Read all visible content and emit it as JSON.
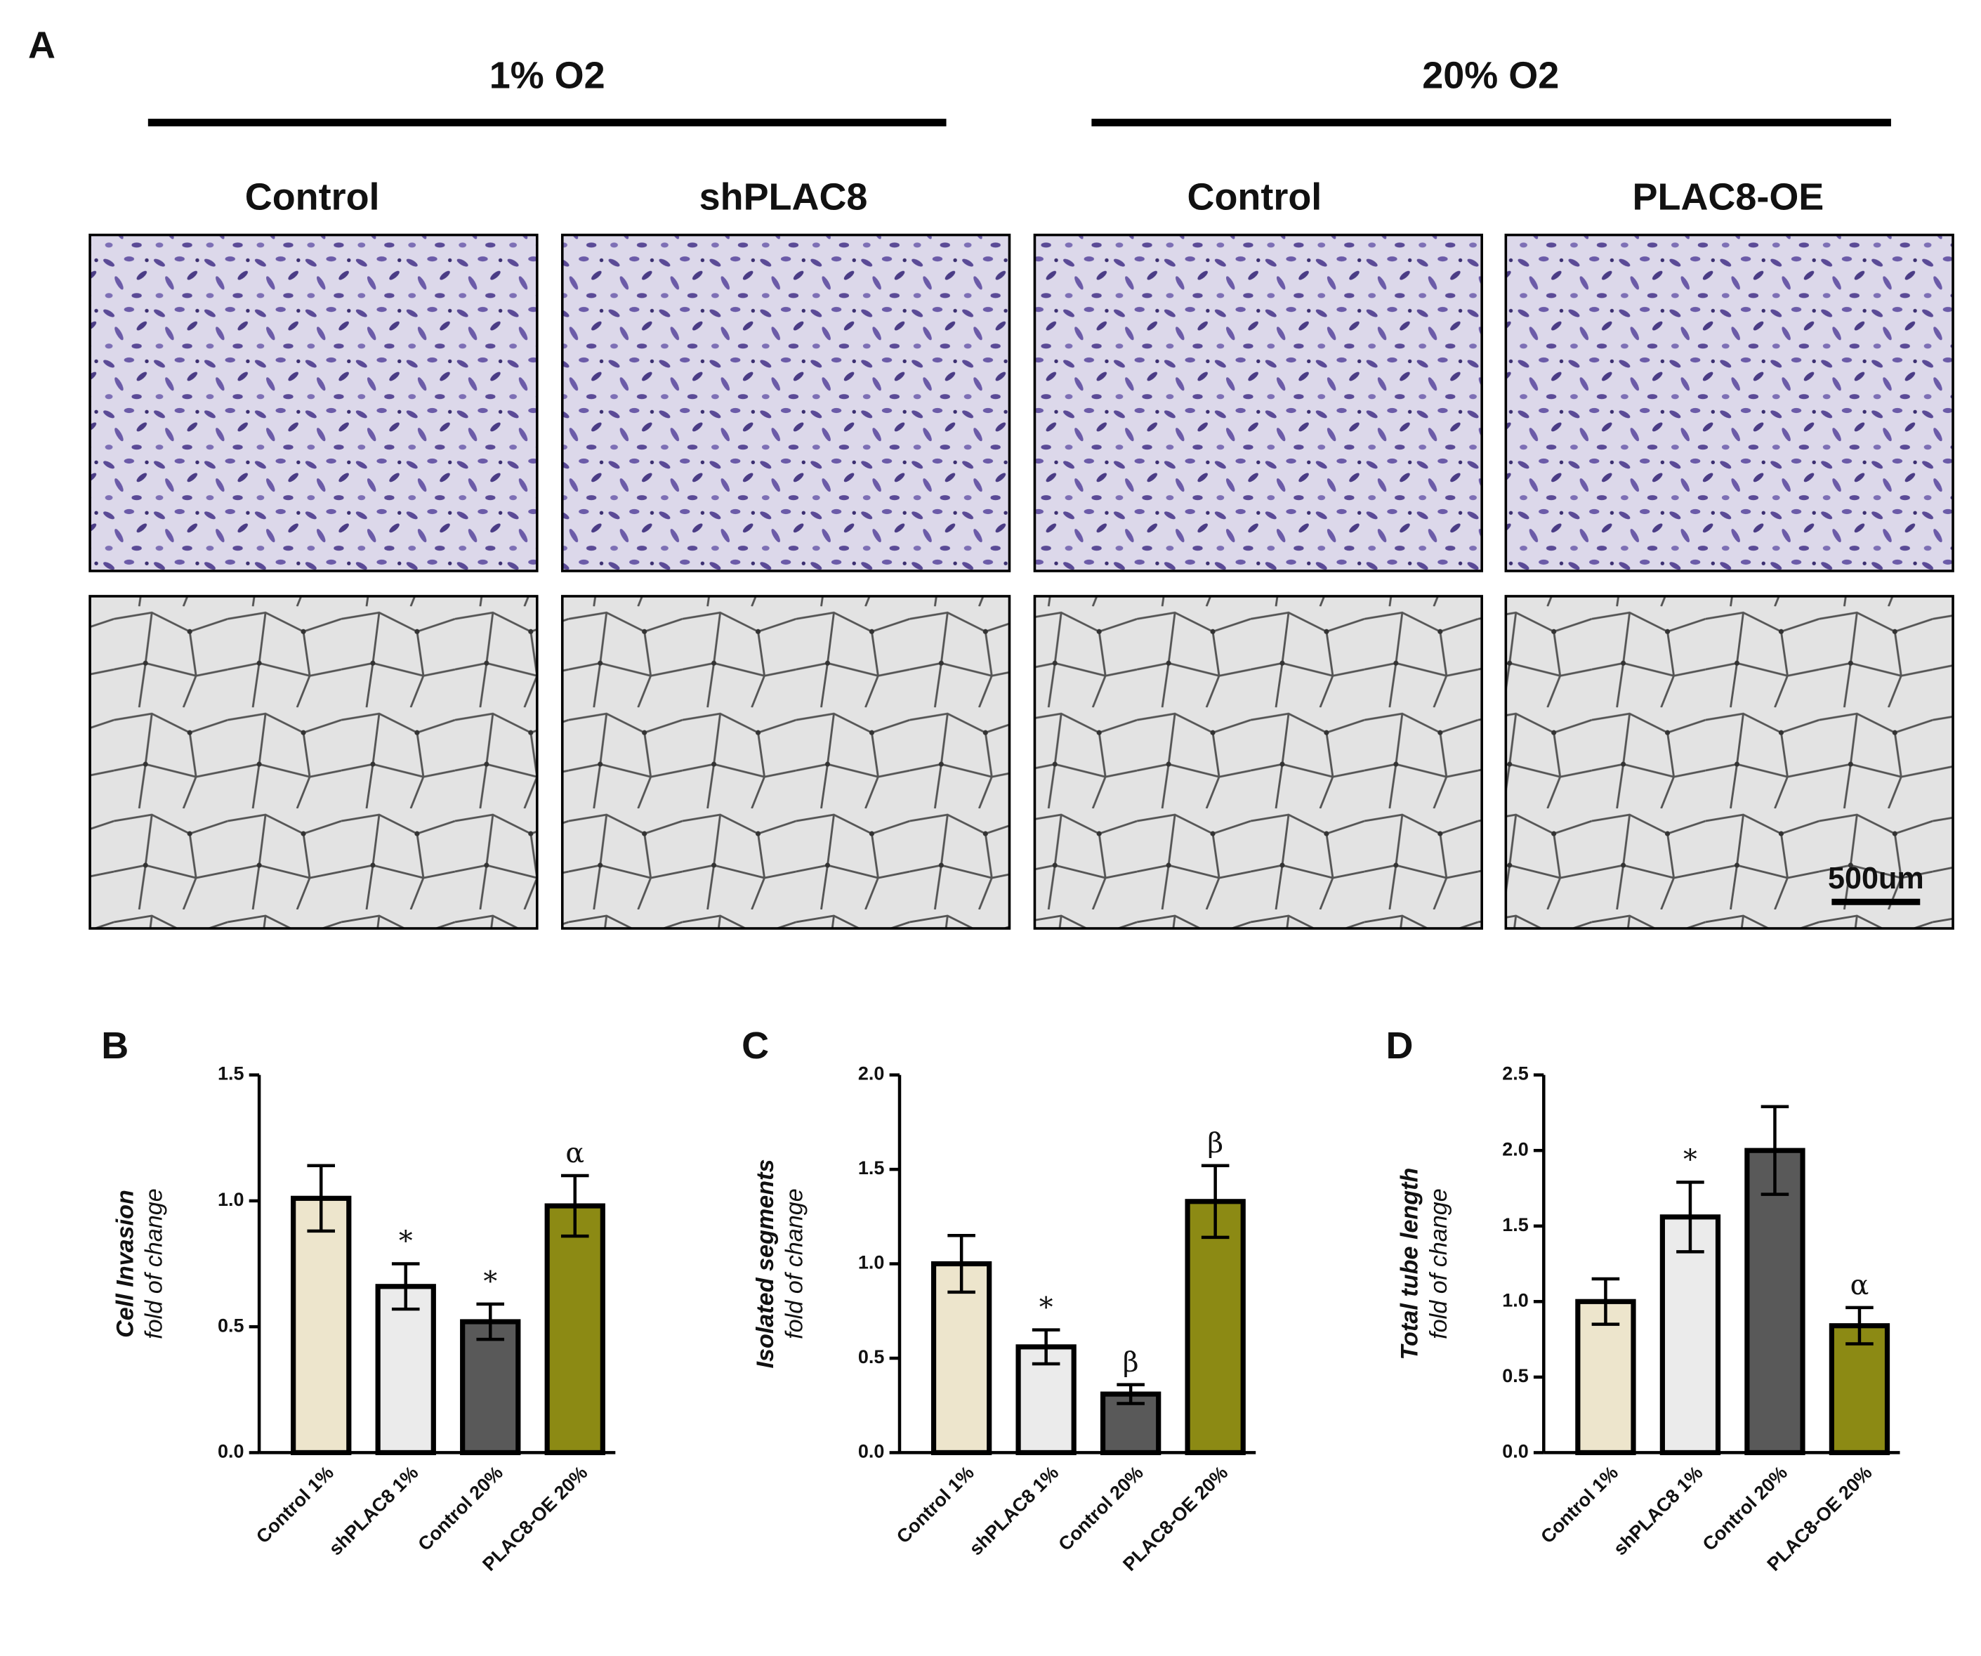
{
  "panel_a": {
    "label": "A",
    "groups": [
      {
        "title": "1% O2"
      },
      {
        "title": "20% O2"
      }
    ],
    "columns": [
      "Control",
      "shPLAC8",
      "Control",
      "PLAC8-OE"
    ],
    "scale_bar": "500um"
  },
  "chart_data": [
    {
      "type": "bar",
      "panel": "B",
      "ylabel": [
        "Cell Invasion",
        "fold of change"
      ],
      "categories": [
        "Control 1%",
        "shPLAC8 1%",
        "Control 20%",
        "PLAC8-OE 20%"
      ],
      "values": [
        1.01,
        0.66,
        0.52,
        0.98
      ],
      "errors": [
        0.13,
        0.09,
        0.07,
        0.12
      ],
      "colors": [
        "#ede5cc",
        "#ebebeb",
        "#595959",
        "#8c8a14"
      ],
      "annotations": [
        null,
        "*",
        "*",
        "α"
      ],
      "ylim": [
        0,
        1.5
      ],
      "yticks": [
        {
          "value": 0,
          "label": "0.0"
        },
        {
          "value": 0.5,
          "label": "0.5"
        },
        {
          "value": 1,
          "label": "1.0"
        },
        {
          "value": 1.5,
          "label": "1.5"
        }
      ]
    },
    {
      "type": "bar",
      "panel": "C",
      "ylabel": [
        "Isolated segments",
        "fold of change"
      ],
      "categories": [
        "Control 1%",
        "shPLAC8 1%",
        "Control 20%",
        "PLAC8-OE 20%"
      ],
      "values": [
        1.0,
        0.56,
        0.31,
        1.33
      ],
      "errors": [
        0.15,
        0.09,
        0.05,
        0.19
      ],
      "colors": [
        "#ede5cc",
        "#ebebeb",
        "#595959",
        "#8c8a14"
      ],
      "annotations": [
        null,
        "*",
        "β",
        "β"
      ],
      "ylim": [
        0,
        2
      ],
      "yticks": [
        {
          "value": 0,
          "label": "0.0"
        },
        {
          "value": 0.5,
          "label": "0.5"
        },
        {
          "value": 1,
          "label": "1.0"
        },
        {
          "value": 1.5,
          "label": "1.5"
        },
        {
          "value": 2,
          "label": "2.0"
        }
      ]
    },
    {
      "type": "bar",
      "panel": "D",
      "ylabel": [
        "Total tube length",
        "fold of change"
      ],
      "categories": [
        "Control 1%",
        "shPLAC8 1%",
        "Control 20%",
        "PLAC8-OE 20%"
      ],
      "values": [
        1.0,
        1.56,
        2.0,
        0.84
      ],
      "errors": [
        0.15,
        0.23,
        0.29,
        0.12
      ],
      "colors": [
        "#ede5cc",
        "#ebebeb",
        "#595959",
        "#8c8a14"
      ],
      "annotations": [
        null,
        "*",
        null,
        "α"
      ],
      "ylim": [
        0,
        2.5
      ],
      "yticks": [
        {
          "value": 0,
          "label": "0.0"
        },
        {
          "value": 0.5,
          "label": "0.5"
        },
        {
          "value": 1,
          "label": "1.0"
        },
        {
          "value": 1.5,
          "label": "1.5"
        },
        {
          "value": 2,
          "label": "2.0"
        },
        {
          "value": 2.5,
          "label": "2.5"
        }
      ]
    }
  ]
}
